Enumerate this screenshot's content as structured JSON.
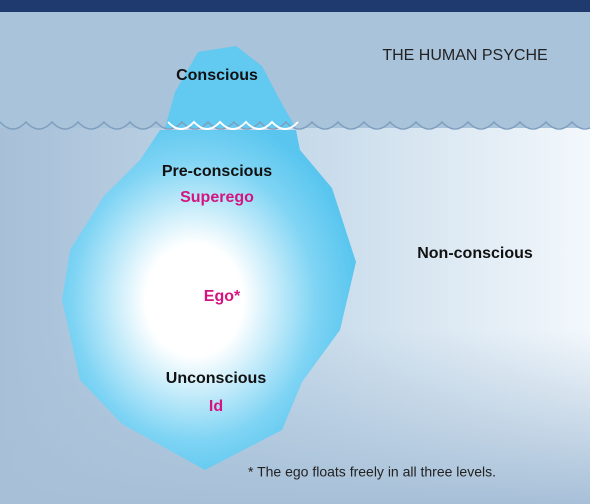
{
  "title": "THE HUMAN PSYCHE",
  "levels": {
    "conscious": "Conscious",
    "preconscious": "Pre-conscious",
    "unconscious": "Unconscious",
    "nonconscious": "Non-conscious"
  },
  "structures": {
    "superego": "Superego",
    "ego": "Ego*",
    "id": "Id"
  },
  "footnote": "* The ego floats freely in all three levels."
}
